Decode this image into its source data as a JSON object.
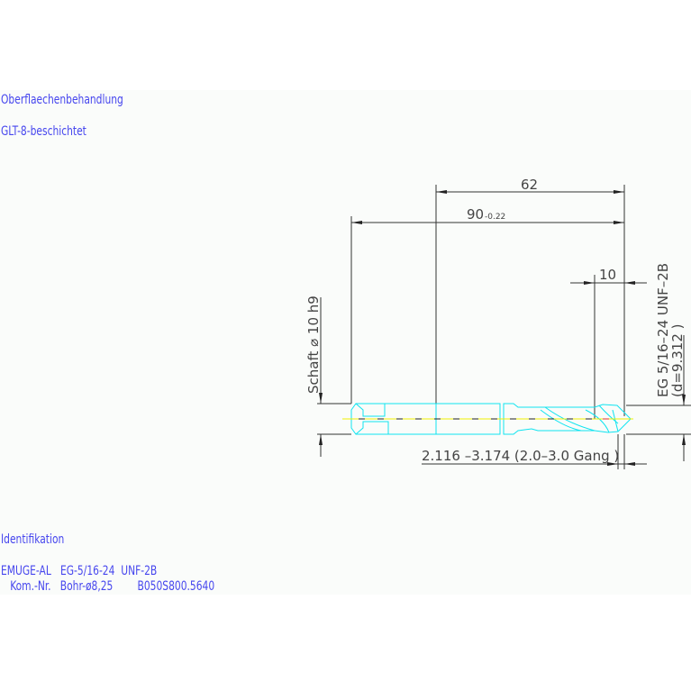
{
  "notes": {
    "surface_label": "Oberflaechenbehandlung",
    "surface_value": "GLT-8-beschichtet",
    "ident_label": "Identifikation",
    "ident_line1": "EMUGE-AL   EG-5/16-24  UNF-2B",
    "ident_line2": "   Kom.-Nr.   Bohr-ø8,25        B050S800.5640"
  },
  "dimensions": {
    "length_62": "62",
    "length_90": "90",
    "length_90_tol": "-0.22",
    "length_10": "10",
    "shank": "Schaft  ⌀ 10  h9",
    "thread": "EG 5/16–24  UNF–2B",
    "thread_d": "(d=9.312 )",
    "chamfer": "2.116  –3.174 (2.0–3.0  Gang   )"
  },
  "colors": {
    "text": "#4646ee",
    "tool_outline": "#10e4f0",
    "center_line": "#f0f000",
    "dimension": "#333333"
  }
}
